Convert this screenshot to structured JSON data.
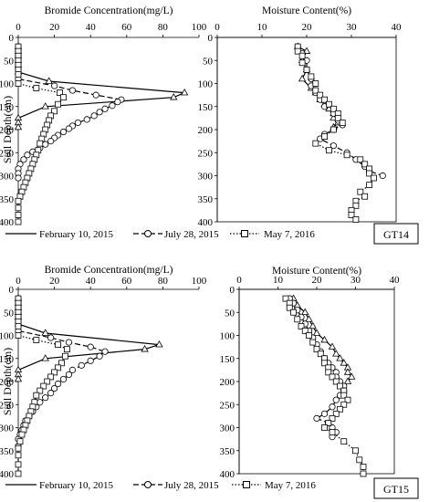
{
  "figure": {
    "legend": {
      "feb": "February 10, 2015",
      "jul": "July 28, 2015",
      "may": "May 7, 2016"
    }
  },
  "chart_data": [
    {
      "id": "bromide-gt14",
      "type": "line",
      "title": "Bromide Concentration(mg/L)",
      "ylabel": "Soil Depth(cm)",
      "xlabel": "",
      "xlim": [
        0,
        100
      ],
      "ylim": [
        0,
        400
      ],
      "y_inverted": true,
      "x_axis_position": "top",
      "xticks": [
        0,
        20,
        40,
        60,
        80,
        100
      ],
      "yticks": [
        0,
        50,
        100,
        150,
        200,
        250,
        300,
        350,
        400
      ],
      "grid": false,
      "legend_position": "bottom",
      "series": [
        {
          "name": "February 10, 2015",
          "marker": "triangle",
          "dash": "solid",
          "x": [
            0,
            0,
            0,
            0,
            0,
            0,
            17,
            92,
            86,
            15,
            0,
            0,
            0
          ],
          "y": [
            20,
            30,
            40,
            50,
            60,
            75,
            95,
            120,
            130,
            150,
            175,
            185,
            195
          ]
        },
        {
          "name": "July 28, 2015",
          "marker": "circle",
          "dash": "dash",
          "x": [
            0,
            0,
            0,
            0,
            0,
            0,
            0,
            20,
            30,
            43,
            57,
            55,
            52,
            48,
            45,
            42,
            38,
            33,
            30,
            28,
            25,
            22,
            20,
            18,
            15,
            12,
            8,
            5,
            3,
            1,
            0,
            0,
            0
          ],
          "y": [
            20,
            30,
            40,
            50,
            60,
            70,
            90,
            105,
            115,
            125,
            135,
            140,
            148,
            155,
            162,
            170,
            178,
            185,
            192,
            198,
            205,
            212,
            218,
            225,
            232,
            240,
            248,
            255,
            265,
            275,
            285,
            295,
            305
          ]
        },
        {
          "name": "May 7, 2016",
          "marker": "square",
          "dash": "dot",
          "x": [
            0,
            0,
            0,
            0,
            0,
            0,
            0,
            0,
            10,
            23,
            25,
            22,
            20,
            18,
            17,
            16,
            15,
            14,
            13,
            12,
            11,
            10,
            9,
            8,
            7,
            6,
            5,
            4,
            3,
            2,
            1,
            0,
            0,
            0,
            0
          ],
          "y": [
            20,
            30,
            40,
            50,
            60,
            70,
            80,
            100,
            110,
            120,
            130,
            145,
            160,
            170,
            180,
            190,
            200,
            210,
            220,
            230,
            245,
            255,
            265,
            275,
            285,
            295,
            305,
            315,
            325,
            335,
            345,
            355,
            370,
            385,
            400
          ]
        }
      ]
    },
    {
      "id": "moisture-gt14",
      "type": "line",
      "title": "Moisture Content(%)",
      "xlabel": "",
      "ylabel": "",
      "xlim": [
        0,
        40
      ],
      "ylim": [
        0,
        400
      ],
      "y_inverted": true,
      "x_axis_position": "top",
      "xticks": [
        0,
        10,
        20,
        30,
        40
      ],
      "yticks": [
        0,
        50,
        100,
        150,
        200,
        250,
        300,
        350,
        400
      ],
      "grid": false,
      "legend_position": "bottom",
      "box_label": "GT14",
      "series": [
        {
          "name": "February 10, 2015",
          "marker": "triangle",
          "dash": "solid",
          "x": [
            18,
            20,
            19,
            20,
            19,
            21,
            22,
            23,
            24,
            25,
            26,
            26,
            27,
            26
          ],
          "y": [
            20,
            30,
            50,
            70,
            90,
            110,
            120,
            135,
            145,
            155,
            165,
            175,
            185,
            195
          ]
        },
        {
          "name": "July 28, 2015",
          "marker": "circle",
          "dash": "dash",
          "x": [
            18,
            19,
            20,
            20,
            21,
            21,
            22,
            23,
            24,
            26,
            27,
            28,
            26,
            24,
            23,
            26,
            29,
            31,
            33,
            34,
            37
          ],
          "y": [
            20,
            35,
            50,
            70,
            90,
            105,
            120,
            135,
            150,
            165,
            180,
            190,
            200,
            210,
            220,
            235,
            250,
            265,
            280,
            290,
            300
          ]
        },
        {
          "name": "May 7, 2016",
          "marker": "square",
          "dash": "dot",
          "x": [
            18,
            18,
            19,
            19,
            20,
            21,
            22,
            22,
            23,
            24,
            25,
            26,
            27,
            27,
            28,
            26,
            24,
            22,
            25,
            29,
            32,
            33,
            34,
            34,
            35,
            34,
            32,
            33,
            31,
            31,
            30,
            30,
            31
          ],
          "y": [
            20,
            30,
            40,
            55,
            70,
            85,
            100,
            115,
            125,
            135,
            145,
            155,
            165,
            175,
            185,
            200,
            215,
            230,
            245,
            255,
            265,
            275,
            285,
            295,
            305,
            320,
            335,
            345,
            355,
            365,
            375,
            385,
            395
          ]
        }
      ]
    },
    {
      "id": "bromide-gt15",
      "type": "line",
      "title": "Bromide Concentration(mg/L)",
      "ylabel": "Soil Depth(cm)",
      "xlabel": "",
      "xlim": [
        0,
        100
      ],
      "ylim": [
        0,
        400
      ],
      "y_inverted": true,
      "x_axis_position": "top",
      "xticks": [
        0,
        20,
        40,
        60,
        80,
        100
      ],
      "yticks": [
        0,
        50,
        100,
        150,
        200,
        250,
        300,
        350,
        400
      ],
      "grid": false,
      "legend_position": "bottom",
      "series": [
        {
          "name": "February 10, 2015",
          "marker": "triangle",
          "dash": "solid",
          "x": [
            0,
            0,
            0,
            0,
            0,
            0,
            15,
            78,
            70,
            15,
            0,
            0,
            0
          ],
          "y": [
            20,
            30,
            40,
            50,
            60,
            75,
            95,
            120,
            130,
            150,
            175,
            185,
            195
          ]
        },
        {
          "name": "July 28, 2015",
          "marker": "circle",
          "dash": "dash",
          "x": [
            0,
            0,
            0,
            0,
            0,
            0,
            0,
            18,
            28,
            40,
            48,
            45,
            40,
            35,
            30,
            28,
            25,
            22,
            20,
            18,
            15,
            12,
            10,
            8,
            6,
            4,
            3,
            2,
            1,
            0,
            0
          ],
          "y": [
            20,
            30,
            40,
            50,
            60,
            70,
            90,
            105,
            115,
            125,
            135,
            145,
            155,
            165,
            175,
            185,
            195,
            205,
            215,
            225,
            235,
            245,
            255,
            265,
            275,
            285,
            295,
            305,
            315,
            325,
            340
          ]
        },
        {
          "name": "May 7, 2016",
          "marker": "square",
          "dash": "dot",
          "x": [
            0,
            0,
            0,
            0,
            0,
            0,
            0,
            0,
            10,
            22,
            27,
            26,
            24,
            22,
            20,
            18,
            16,
            14,
            12,
            10,
            9,
            8,
            7,
            6,
            5,
            4,
            3,
            2,
            1,
            0,
            0,
            0,
            0
          ],
          "y": [
            20,
            30,
            40,
            50,
            60,
            70,
            80,
            100,
            110,
            120,
            130,
            145,
            160,
            170,
            180,
            190,
            200,
            210,
            220,
            230,
            245,
            255,
            265,
            275,
            285,
            295,
            305,
            315,
            330,
            345,
            360,
            380,
            400
          ]
        }
      ]
    },
    {
      "id": "moisture-gt15",
      "type": "line",
      "title": "Moisture Content(%)",
      "xlabel": "",
      "ylabel": "",
      "xlim": [
        0,
        40
      ],
      "ylim": [
        0,
        400
      ],
      "y_inverted": true,
      "x_axis_position": "top",
      "xticks": [
        0,
        10,
        20,
        30,
        40
      ],
      "yticks": [
        0,
        50,
        100,
        150,
        200,
        250,
        300,
        350,
        400
      ],
      "grid": false,
      "legend_position": "bottom",
      "box_label": "GT15",
      "series": [
        {
          "name": "February 10, 2015",
          "marker": "triangle",
          "dash": "solid",
          "x": [
            14,
            15,
            17,
            18,
            19,
            20,
            22,
            24,
            25,
            26,
            27,
            28,
            28,
            29,
            28
          ],
          "y": [
            20,
            35,
            50,
            65,
            80,
            95,
            110,
            125,
            140,
            150,
            160,
            170,
            180,
            190,
            200
          ]
        },
        {
          "name": "July 28, 2015",
          "marker": "circle",
          "dash": "dash",
          "x": [
            13,
            14,
            15,
            16,
            17,
            18,
            19,
            20,
            21,
            22,
            23,
            24,
            25,
            25,
            26,
            27,
            27,
            26,
            25,
            24,
            22,
            20,
            23,
            24,
            25,
            24
          ],
          "y": [
            20,
            30,
            45,
            60,
            75,
            90,
            105,
            120,
            135,
            150,
            160,
            170,
            180,
            190,
            200,
            210,
            220,
            230,
            240,
            255,
            270,
            280,
            290,
            300,
            310,
            320
          ]
        },
        {
          "name": "May 7, 2016",
          "marker": "square",
          "dash": "dot",
          "x": [
            12,
            13,
            13,
            14,
            15,
            16,
            17,
            18,
            19,
            20,
            21,
            22,
            22,
            23,
            23,
            24,
            25,
            26,
            27,
            27,
            28,
            27,
            26,
            25,
            24,
            23,
            22,
            24,
            27,
            30,
            31,
            32,
            32
          ],
          "y": [
            20,
            30,
            40,
            50,
            65,
            80,
            90,
            100,
            115,
            130,
            140,
            150,
            160,
            170,
            180,
            190,
            200,
            210,
            220,
            230,
            240,
            250,
            260,
            270,
            280,
            290,
            300,
            310,
            330,
            350,
            370,
            385,
            400
          ]
        }
      ]
    }
  ]
}
